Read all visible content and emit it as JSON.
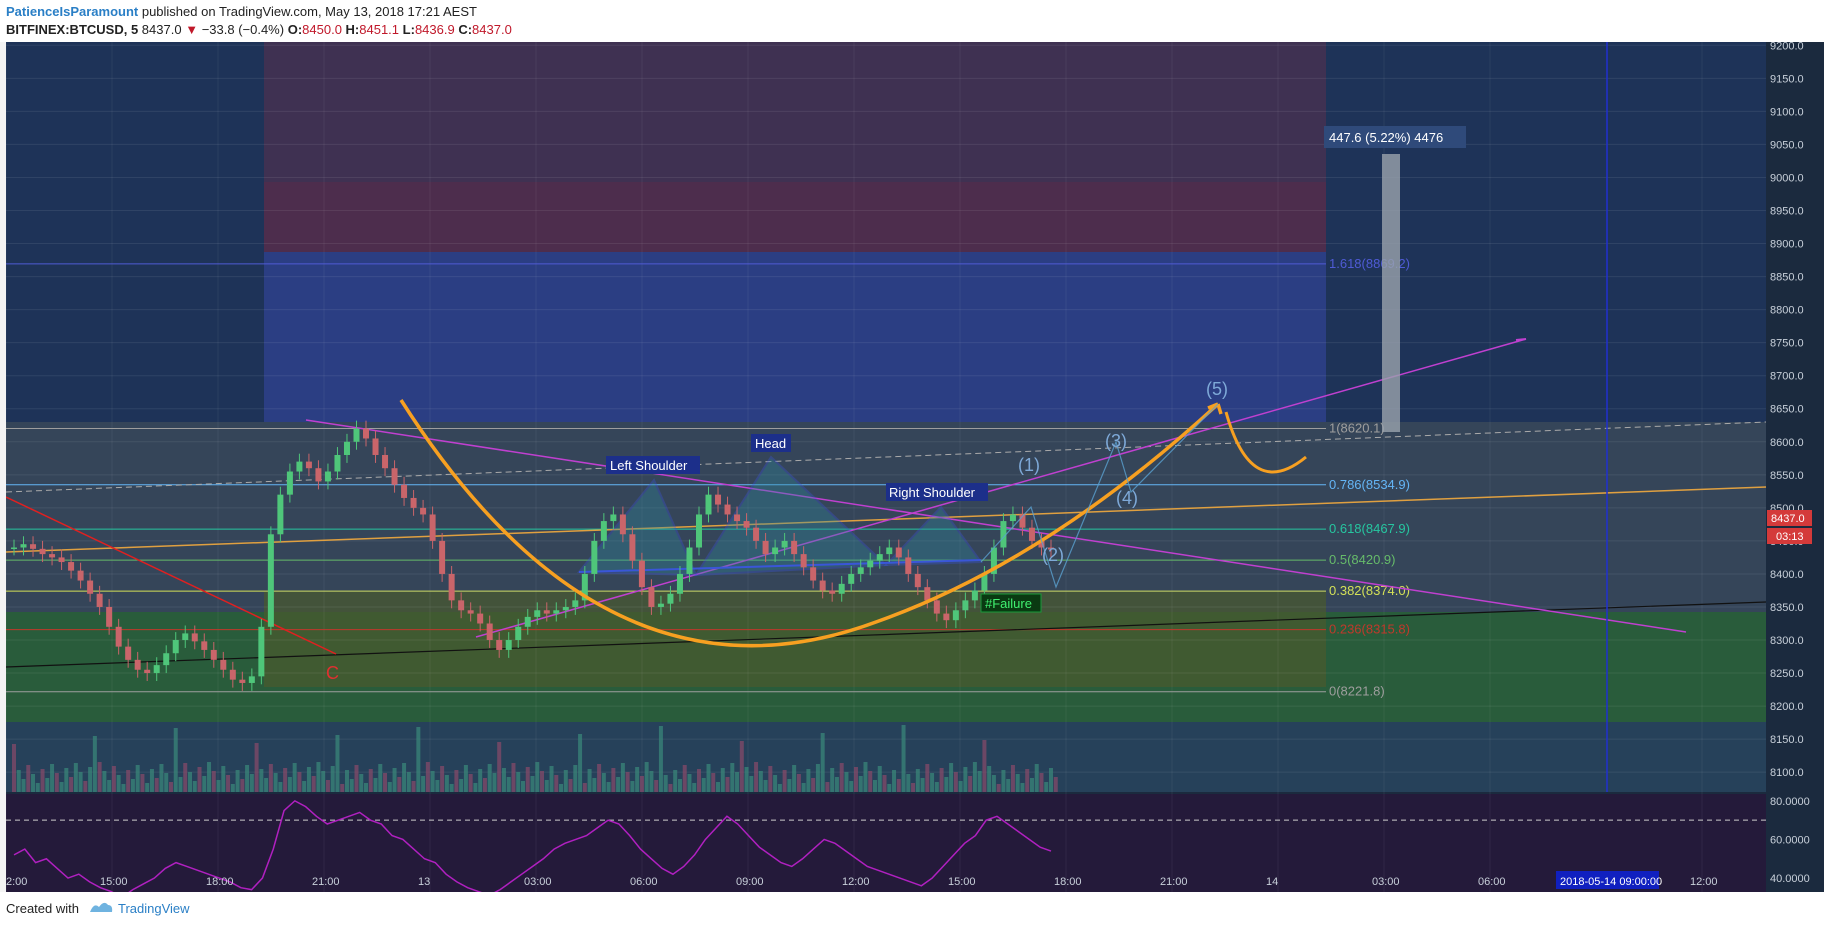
{
  "header": {
    "author": "PatienceIsParamount",
    "published": "published on TradingView.com, May 13, 2018 17:21 AEST",
    "symbol": "BITFINEX:BTCUSD, 5",
    "last": "8437.0",
    "change": "−33.8 (−0.4%)",
    "o_label": "O:",
    "o_val": "8450.0",
    "h_label": "H:",
    "h_val": "8451.1",
    "l_label": "L:",
    "l_val": "8436.9",
    "c_label": "C:",
    "c_val": "8437.0"
  },
  "footer": {
    "created": "Created with",
    "brand": "TradingView"
  },
  "chart_data": {
    "type": "candlestick",
    "price_axis": {
      "ticks": [
        "9200.0",
        "9150.0",
        "9100.0",
        "9050.0",
        "9000.0",
        "8950.0",
        "8900.0",
        "8850.0",
        "8800.0",
        "8750.0",
        "8700.0",
        "8650.0",
        "8600.0",
        "8550.0",
        "8500.0",
        "8450.0",
        "8400.0",
        "8350.0",
        "8300.0",
        "8250.0",
        "8200.0",
        "8150.0",
        "8100.0"
      ],
      "range": [
        8070,
        9205
      ],
      "last_price_tag": "8437.0",
      "countdown_tag": "03:13"
    },
    "rsi_axis": {
      "ticks": [
        "80.0000",
        "60.0000",
        "40.0000"
      ],
      "range": [
        25,
        82
      ],
      "bands": [
        70,
        30
      ]
    },
    "time_axis": {
      "ticks": [
        "2:00",
        "15:00",
        "18:00",
        "21:00",
        "13",
        "03:00",
        "06:00",
        "09:00",
        "12:00",
        "15:00",
        "18:00",
        "21:00",
        "14",
        "03:00",
        "06:00",
        "12:00"
      ],
      "cursor_label": "2018-05-14 09:00:00"
    },
    "fib_levels": [
      {
        "label": "1.618(8869.2)",
        "price": 8869.2,
        "color": "#4f5bd5"
      },
      {
        "label": "1(8620.1)",
        "price": 8620.1,
        "color": "#9e9e9e"
      },
      {
        "label": "0.786(8534.9)",
        "price": 8534.9,
        "color": "#64b5f6"
      },
      {
        "label": "0.618(8467.9)",
        "price": 8467.9,
        "color": "#26c6a0"
      },
      {
        "label": "0.5(8420.9)",
        "price": 8420.9,
        "color": "#66bb6a"
      },
      {
        "label": "0.382(8374.0)",
        "price": 8374.0,
        "color": "#d4e157"
      },
      {
        "label": "0.236(8315.8)",
        "price": 8315.8,
        "color": "#c0392b"
      },
      {
        "label": "0(8221.8)",
        "price": 8221.8,
        "color": "#9e9e9e"
      }
    ],
    "annotations": {
      "left_shoulder": "Left Shoulder",
      "head": "Head",
      "right_shoulder": "Right Shoulder",
      "failure": "#Failure",
      "wave_c": "C",
      "wave_1": "(1)",
      "wave_2": "(2)",
      "wave_3": "(3)",
      "wave_4": "(4)",
      "wave_5": "(5)",
      "measure": "447.6 (5.22%) 4476"
    },
    "closes": [
      8440,
      8445,
      8438,
      8430,
      8425,
      8418,
      8405,
      8390,
      8370,
      8350,
      8320,
      8290,
      8270,
      8255,
      8250,
      8262,
      8280,
      8300,
      8310,
      8298,
      8285,
      8270,
      8255,
      8240,
      8235,
      8245,
      8320,
      8460,
      8520,
      8555,
      8570,
      8560,
      8540,
      8555,
      8580,
      8600,
      8620,
      8605,
      8580,
      8560,
      8535,
      8515,
      8500,
      8490,
      8450,
      8400,
      8360,
      8345,
      8340,
      8325,
      8300,
      8285,
      8300,
      8320,
      8335,
      8345,
      8340,
      8345,
      8350,
      8360,
      8400,
      8450,
      8480,
      8490,
      8460,
      8420,
      8380,
      8350,
      8355,
      8370,
      8400,
      8440,
      8490,
      8520,
      8505,
      8490,
      8480,
      8470,
      8450,
      8430,
      8440,
      8450,
      8430,
      8410,
      8390,
      8375,
      8370,
      8385,
      8400,
      8410,
      8420,
      8430,
      8440,
      8425,
      8400,
      8380,
      8360,
      8340,
      8330,
      8345,
      8360,
      8375,
      8400,
      8440,
      8480,
      8490,
      8470,
      8450,
      8440,
      8437
    ],
    "rsi": [
      52,
      55,
      48,
      50,
      45,
      40,
      42,
      38,
      35,
      33,
      30,
      34,
      37,
      40,
      45,
      48,
      46,
      44,
      42,
      40,
      38,
      35,
      34,
      40,
      55,
      75,
      80,
      77,
      72,
      68,
      70,
      72,
      74,
      70,
      68,
      62,
      60,
      55,
      50,
      48,
      42,
      38,
      35,
      33,
      31,
      34,
      38,
      42,
      46,
      50,
      55,
      58,
      60,
      62,
      66,
      70,
      68,
      62,
      55,
      50,
      45,
      42,
      46,
      52,
      60,
      66,
      72,
      68,
      62,
      56,
      52,
      48,
      46,
      50,
      55,
      60,
      58,
      54,
      50,
      46,
      44,
      42,
      40,
      38,
      36,
      40,
      46,
      52,
      58,
      62,
      70,
      72,
      68,
      64,
      60,
      56,
      54
    ]
  }
}
